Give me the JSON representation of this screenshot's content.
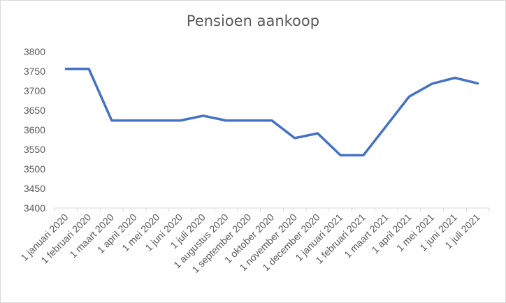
{
  "chart_data": {
    "type": "line",
    "title": "Pensioen aankoop",
    "xlabel": "",
    "ylabel": "",
    "ylim": [
      3400,
      3800
    ],
    "yticks": [
      "3800",
      "3750",
      "3700",
      "3650",
      "3600",
      "3550",
      "3500",
      "3450",
      "3400"
    ],
    "grid": false,
    "legend": "none",
    "categories": [
      "1 januari 2020",
      "1 februari 2020",
      "1 maart 2020",
      "1 april 2020",
      "1 mei 2020",
      "1 juni 2020",
      "1 juli 2020",
      "1 augustus 2020",
      "1 september 2020",
      "1 oktober 2020",
      "1 november 2020",
      "1 december 2020",
      "1 januari 2021",
      "1 februari 2021",
      "1 maart 2021",
      "1 april 2021",
      "1 mei 2021",
      "1 juni 2021",
      "1 juli 2021"
    ],
    "series": [
      {
        "color": "#4472c4",
        "values": [
          3756,
          3756,
          3624,
          3624,
          3624,
          3624,
          3636,
          3624,
          3624,
          3624,
          3579,
          3591,
          3535,
          3535,
          3610,
          3685,
          3718,
          3733,
          3719
        ]
      }
    ]
  }
}
